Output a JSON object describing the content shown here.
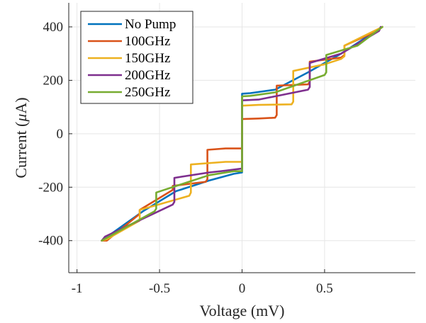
{
  "chart_data": {
    "type": "line",
    "title": "",
    "xlabel": "Voltage (mV)",
    "ylabel_prefix": "Current (",
    "ylabel_mu": "μ",
    "ylabel_suffix": "A)",
    "xlim": [
      -1.05,
      1.05
    ],
    "ylim": [
      -520,
      490
    ],
    "xticks": [
      -1,
      -0.5,
      0,
      0.5
    ],
    "xtick_labels": [
      "-1",
      "-0.5",
      "0",
      "0.5"
    ],
    "yticks": [
      -400,
      -200,
      0,
      200,
      400
    ],
    "ytick_labels": [
      "-400",
      "-200",
      "0",
      "200",
      "400"
    ],
    "grid": true,
    "legend_position": "top-left",
    "series": [
      {
        "name": "No Pump",
        "color": "#0072BD",
        "x": [
          -0.85,
          -0.6,
          -0.4,
          -0.2,
          -0.05,
          0.0,
          0.0,
          0.05,
          0.2,
          0.4,
          0.6,
          0.85
        ],
        "y": [
          -400,
          -290,
          -215,
          -175,
          -150,
          -145,
          150,
          152,
          165,
          230,
          300,
          400
        ]
      },
      {
        "name": "100GHz",
        "color": "#D95319",
        "x": [
          -0.85,
          -0.82,
          -0.62,
          -0.62,
          -0.42,
          -0.42,
          -0.22,
          -0.21,
          -0.21,
          -0.1,
          0.0,
          0.0,
          0.1,
          0.2,
          0.21,
          0.21,
          0.4,
          0.41,
          0.41,
          0.6,
          0.62,
          0.62,
          0.82,
          0.85
        ],
        "y": [
          -400,
          -400,
          -300,
          -285,
          -210,
          -195,
          -180,
          -170,
          -60,
          -55,
          -55,
          55,
          57,
          60,
          70,
          180,
          185,
          195,
          270,
          285,
          295,
          330,
          385,
          400
        ]
      },
      {
        "name": "150GHz",
        "color": "#EDB120",
        "x": [
          -0.85,
          -0.82,
          -0.62,
          -0.62,
          -0.32,
          -0.31,
          -0.31,
          -0.1,
          0.0,
          0.0,
          0.1,
          0.3,
          0.31,
          0.31,
          0.5,
          0.6,
          0.62,
          0.62,
          0.85
        ],
        "y": [
          -400,
          -395,
          -325,
          -285,
          -232,
          -220,
          -115,
          -105,
          -105,
          105,
          108,
          110,
          120,
          235,
          260,
          280,
          290,
          330,
          400
        ]
      },
      {
        "name": "200GHz",
        "color": "#7E2F8E",
        "x": [
          -0.85,
          -0.83,
          -0.42,
          -0.41,
          -0.41,
          -0.2,
          -0.1,
          0.0,
          0.0,
          0.1,
          0.2,
          0.4,
          0.41,
          0.41,
          0.6,
          0.83,
          0.84
        ],
        "y": [
          -400,
          -385,
          -265,
          -255,
          -165,
          -145,
          -138,
          -130,
          125,
          128,
          140,
          165,
          175,
          265,
          300,
          385,
          400
        ]
      },
      {
        "name": "250GHz",
        "color": "#77AC30",
        "x": [
          -0.85,
          -0.53,
          -0.52,
          -0.52,
          -0.2,
          -0.05,
          0.0,
          0.0,
          0.05,
          0.2,
          0.5,
          0.51,
          0.51,
          0.7,
          0.85
        ],
        "y": [
          -400,
          -290,
          -280,
          -220,
          -155,
          -140,
          -140,
          140,
          142,
          155,
          220,
          230,
          295,
          330,
          400
        ]
      }
    ]
  }
}
